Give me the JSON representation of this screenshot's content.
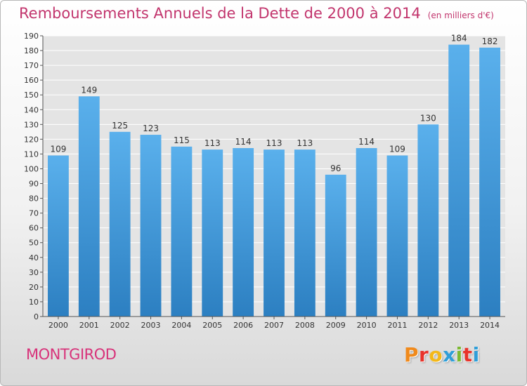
{
  "header": {
    "title": "Remboursements Annuels de la Dette de 2000 à 2014",
    "subtitle": "(en milliers d'€)"
  },
  "footer": {
    "commune": "MONTGIROD",
    "logo": "Proxiti",
    "logo_colors": [
      "#f08a1c",
      "#e8332a",
      "#f3b81a",
      "#2f9ed8",
      "#7cb932",
      "#e8332a",
      "#2f9ed8"
    ]
  },
  "chart_data": {
    "type": "bar",
    "categories": [
      "2000",
      "2001",
      "2002",
      "2003",
      "2004",
      "2005",
      "2006",
      "2007",
      "2008",
      "2009",
      "2010",
      "2011",
      "2012",
      "2013",
      "2014"
    ],
    "values": [
      109,
      149,
      125,
      123,
      115,
      113,
      114,
      113,
      113,
      96,
      114,
      109,
      130,
      184,
      182
    ],
    "ylim": [
      0,
      190
    ],
    "yticks": [
      0,
      10,
      20,
      30,
      40,
      50,
      60,
      70,
      80,
      90,
      100,
      110,
      120,
      130,
      140,
      150,
      160,
      170,
      180,
      190
    ],
    "grid": true,
    "bar_color_top": "#5ab0ec",
    "bar_color_bottom": "#2c7fc1"
  }
}
